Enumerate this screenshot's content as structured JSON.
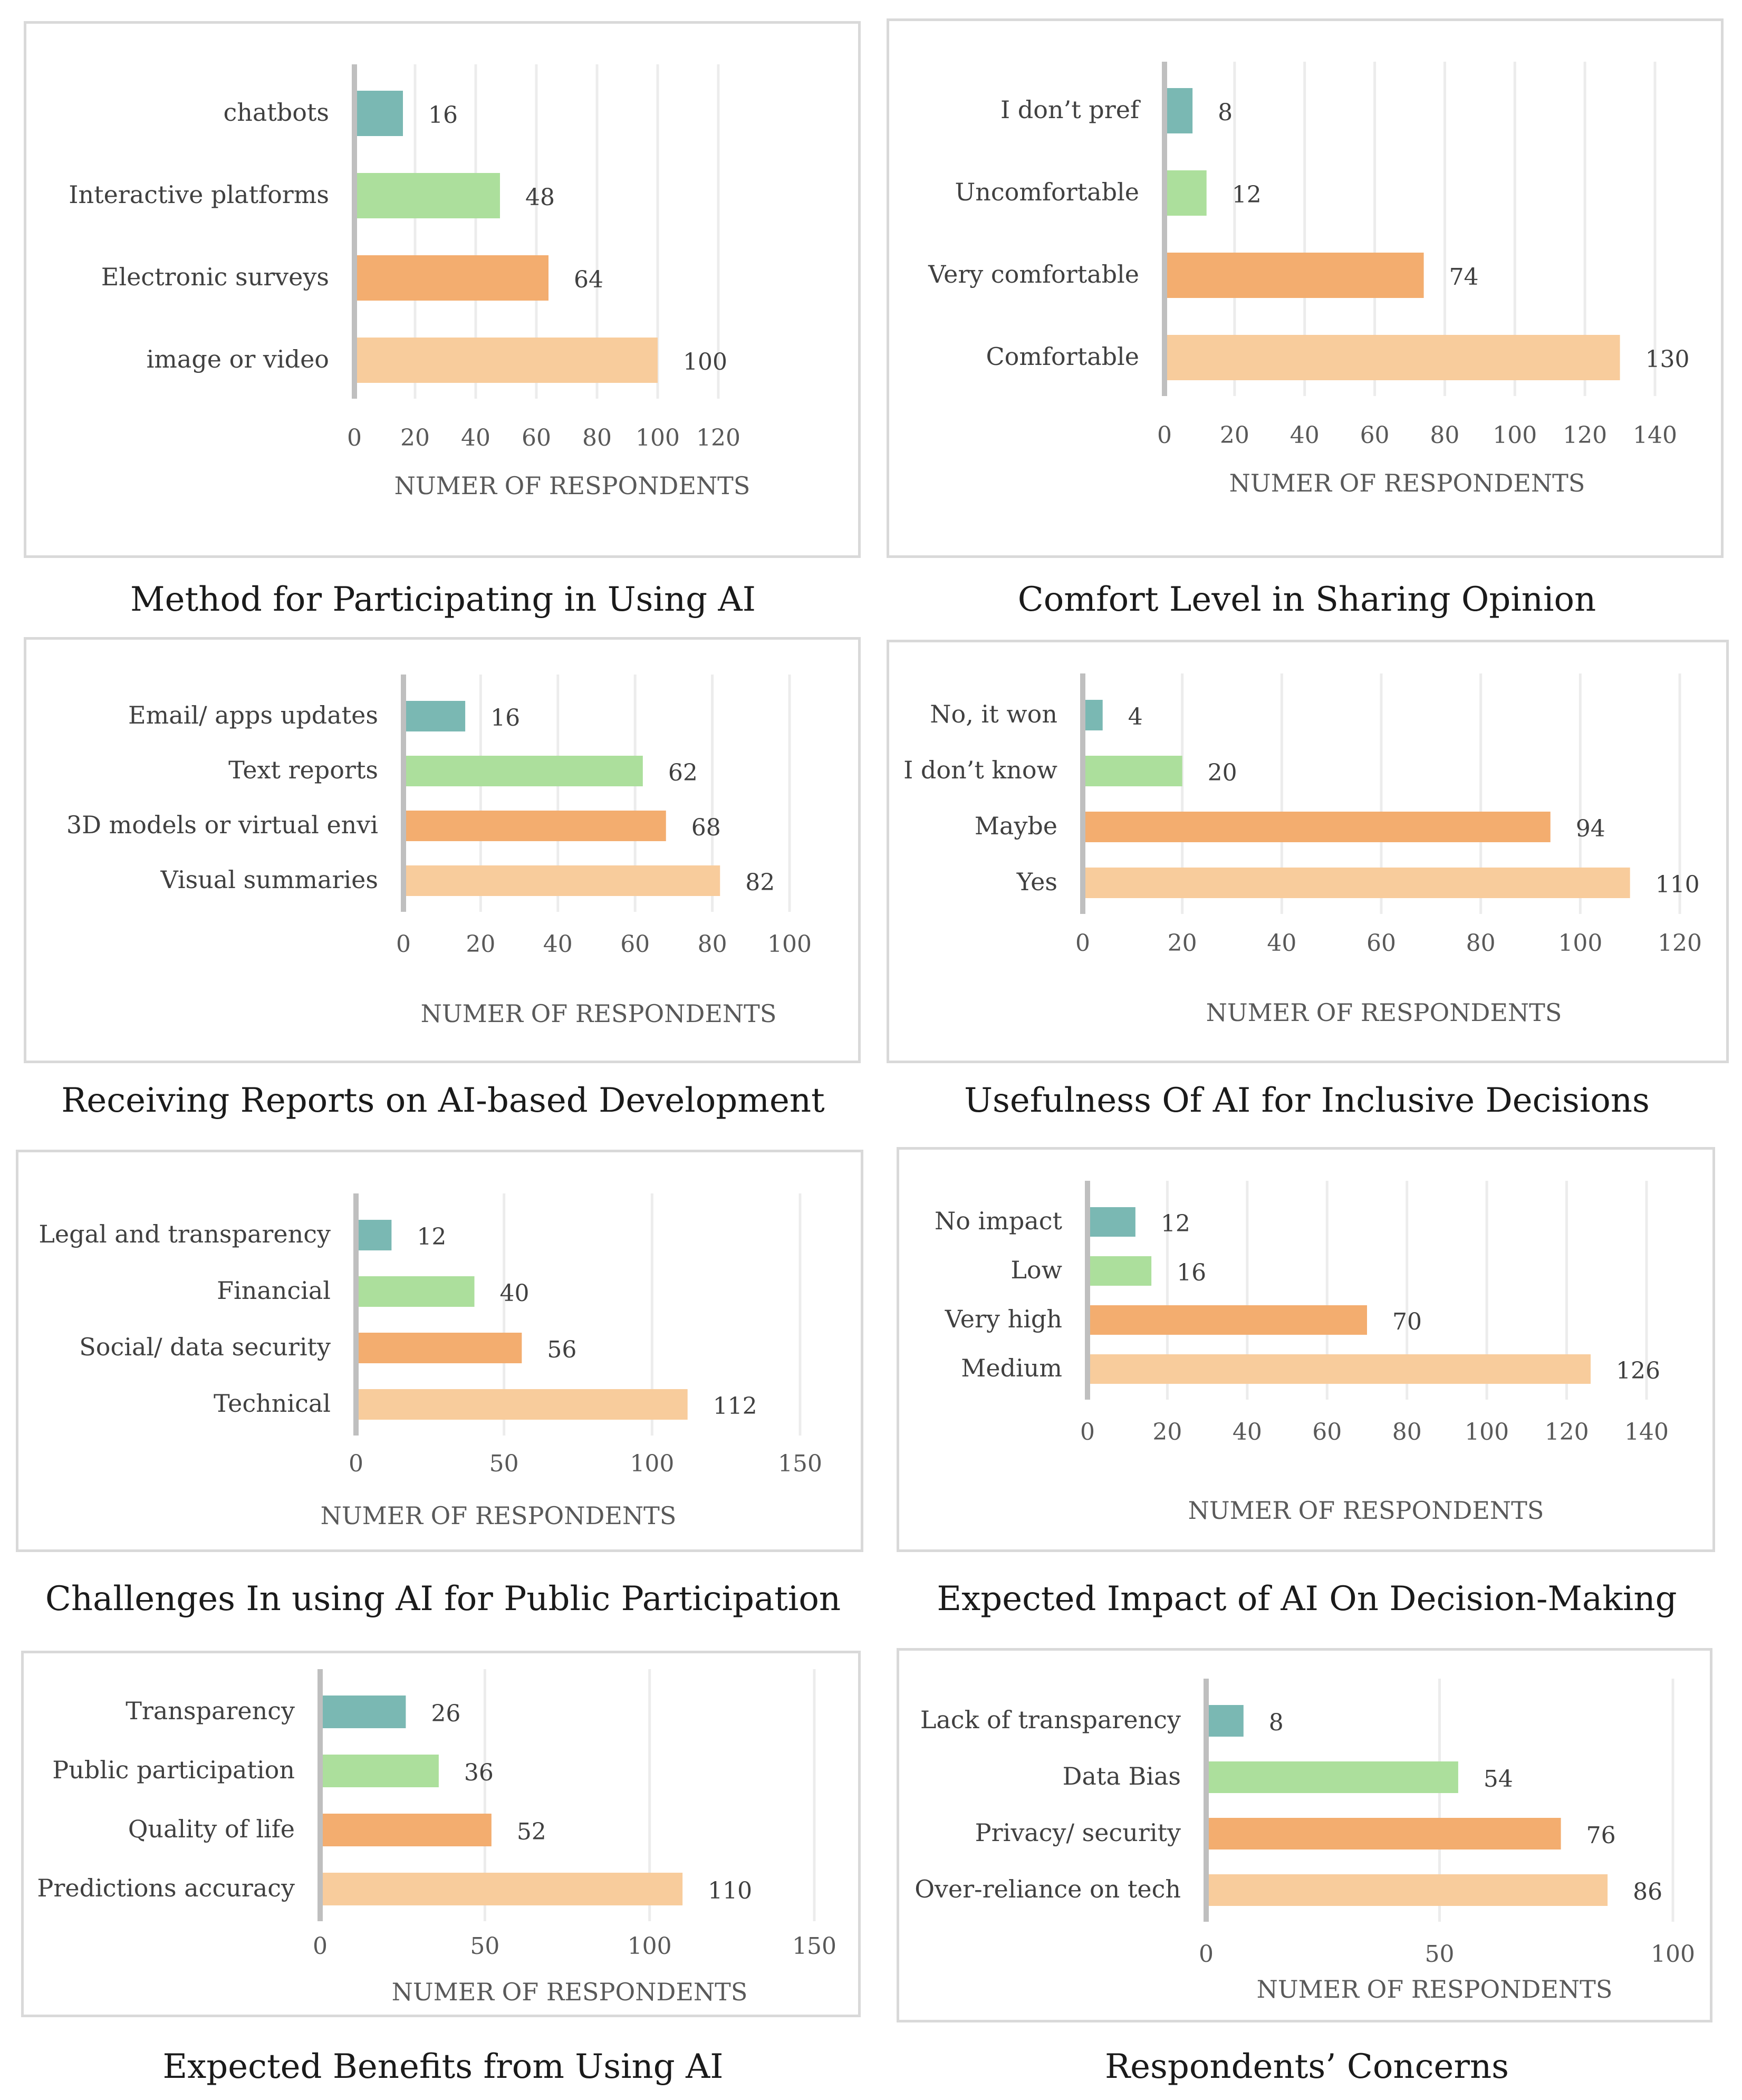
{
  "colors": {
    "teal": "#7ab8b3",
    "green": "#acdf9c",
    "orange": "#f3ad6f",
    "peach": "#f8cc9c",
    "grid": "#ececec",
    "axis": "#bfbfbf"
  },
  "chart_data": [
    {
      "type": "bar",
      "orientation": "horizontal",
      "title": "Method for Participating in Using AI",
      "categories": [
        "chatbots",
        "Interactive  platforms",
        "Electronic surveys",
        "image or video"
      ],
      "values": [
        16,
        48,
        64,
        100
      ],
      "xlabel": "NUMER OF RESPONDENTS",
      "xlim": [
        0,
        120
      ],
      "ticks": [
        0,
        20,
        40,
        60,
        80,
        100,
        120
      ]
    },
    {
      "type": "bar",
      "orientation": "horizontal",
      "title": "Comfort Level in Sharing Opinion",
      "categories": [
        "I don’t pref",
        "Uncomfortable",
        "Very comfortable",
        "Comfortable"
      ],
      "values": [
        8,
        12,
        74,
        130
      ],
      "xlabel": "NUMER OF RESPONDENTS",
      "xlim": [
        0,
        140
      ],
      "ticks": [
        0,
        20,
        40,
        60,
        80,
        100,
        120,
        140
      ]
    },
    {
      "type": "bar",
      "orientation": "horizontal",
      "title": "Receiving Reports on AI-based Development",
      "categories": [
        "Email/ apps updates",
        "Text reports",
        "3D models or virtual envi",
        "Visual summaries"
      ],
      "values": [
        16,
        62,
        68,
        82
      ],
      "xlabel": "NUMER OF RESPONDENTS",
      "xlim": [
        0,
        100
      ],
      "ticks": [
        0,
        20,
        40,
        60,
        80,
        100
      ]
    },
    {
      "type": "bar",
      "orientation": "horizontal",
      "title": "Usefulness Of AI for Inclusive Decisions",
      "categories": [
        "No, it won",
        "I don’t know",
        "Maybe",
        "Yes"
      ],
      "values": [
        4,
        20,
        94,
        110
      ],
      "xlabel": "NUMER OF RESPONDENTS",
      "xlim": [
        0,
        120
      ],
      "ticks": [
        0,
        20,
        40,
        60,
        80,
        100,
        120
      ]
    },
    {
      "type": "bar",
      "orientation": "horizontal",
      "title": "Challenges In using AI for Public Participation",
      "categories": [
        "Legal and transparency",
        "Financial",
        "Social/ data security",
        "Technical"
      ],
      "values": [
        12,
        40,
        56,
        112
      ],
      "xlabel": "NUMER OF RESPONDENTS",
      "xlim": [
        0,
        150
      ],
      "ticks": [
        0,
        50,
        100,
        150
      ]
    },
    {
      "type": "bar",
      "orientation": "horizontal",
      "title": "Expected Impact of AI On Decision-Making",
      "categories": [
        "No impact",
        "Low",
        "Very high",
        "Medium"
      ],
      "values": [
        12,
        16,
        70,
        126
      ],
      "xlabel": "NUMER OF RESPONDENTS",
      "xlim": [
        0,
        140
      ],
      "ticks": [
        0,
        20,
        40,
        60,
        80,
        100,
        120,
        140
      ]
    },
    {
      "type": "bar",
      "orientation": "horizontal",
      "title": "Expected Benefits from Using AI",
      "categories": [
        "Transparency",
        "Public participation",
        "Quality of life",
        "Predictions accuracy"
      ],
      "values": [
        26,
        36,
        52,
        110
      ],
      "xlabel": "NUMER OF RESPONDENTS",
      "xlim": [
        0,
        150
      ],
      "ticks": [
        0,
        50,
        100,
        150
      ]
    },
    {
      "type": "bar",
      "orientation": "horizontal",
      "title": "Respondents’ Concerns",
      "categories": [
        "Lack of transparency",
        "Data Bias",
        "Privacy/ security",
        "Over-reliance on tech"
      ],
      "values": [
        8,
        54,
        76,
        86
      ],
      "xlabel": "NUMER OF RESPONDENTS",
      "xlim": [
        0,
        100
      ],
      "ticks": [
        0,
        50,
        100
      ]
    }
  ]
}
